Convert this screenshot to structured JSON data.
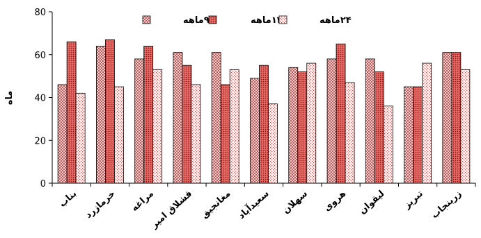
{
  "chart_data": {
    "type": "bar",
    "ylabel": "ماه",
    "ylim": [
      0,
      80
    ],
    "yticks": [
      "0",
      "20",
      "40",
      "60",
      "80"
    ],
    "grid": false,
    "legend_position": "top",
    "categories": [
      "بناب",
      "خرمازرد",
      "مراغه",
      "قشلاق امیر",
      "مغانجیق",
      "سعیدآباد",
      "سهلان",
      "هروی",
      "لیقوان",
      "تبریز",
      "زرینجاب"
    ],
    "series": [
      {
        "name": "۹ماهه",
        "pattern": "crosshatch",
        "color": "#c0504d",
        "values": [
          46,
          64,
          58,
          61,
          61,
          49,
          54,
          58,
          58,
          45,
          61
        ]
      },
      {
        "name": "۱۲ماهه",
        "pattern": "dense-dots",
        "color": "#c0504d",
        "values": [
          66,
          67,
          64,
          55,
          46,
          55,
          52,
          65,
          52,
          45,
          61
        ]
      },
      {
        "name": "۲۴ماهه",
        "pattern": "sparse-dots",
        "color": "#c0504d",
        "values": [
          42,
          45,
          53,
          46,
          53,
          37,
          56,
          47,
          36,
          56,
          53
        ]
      }
    ]
  }
}
